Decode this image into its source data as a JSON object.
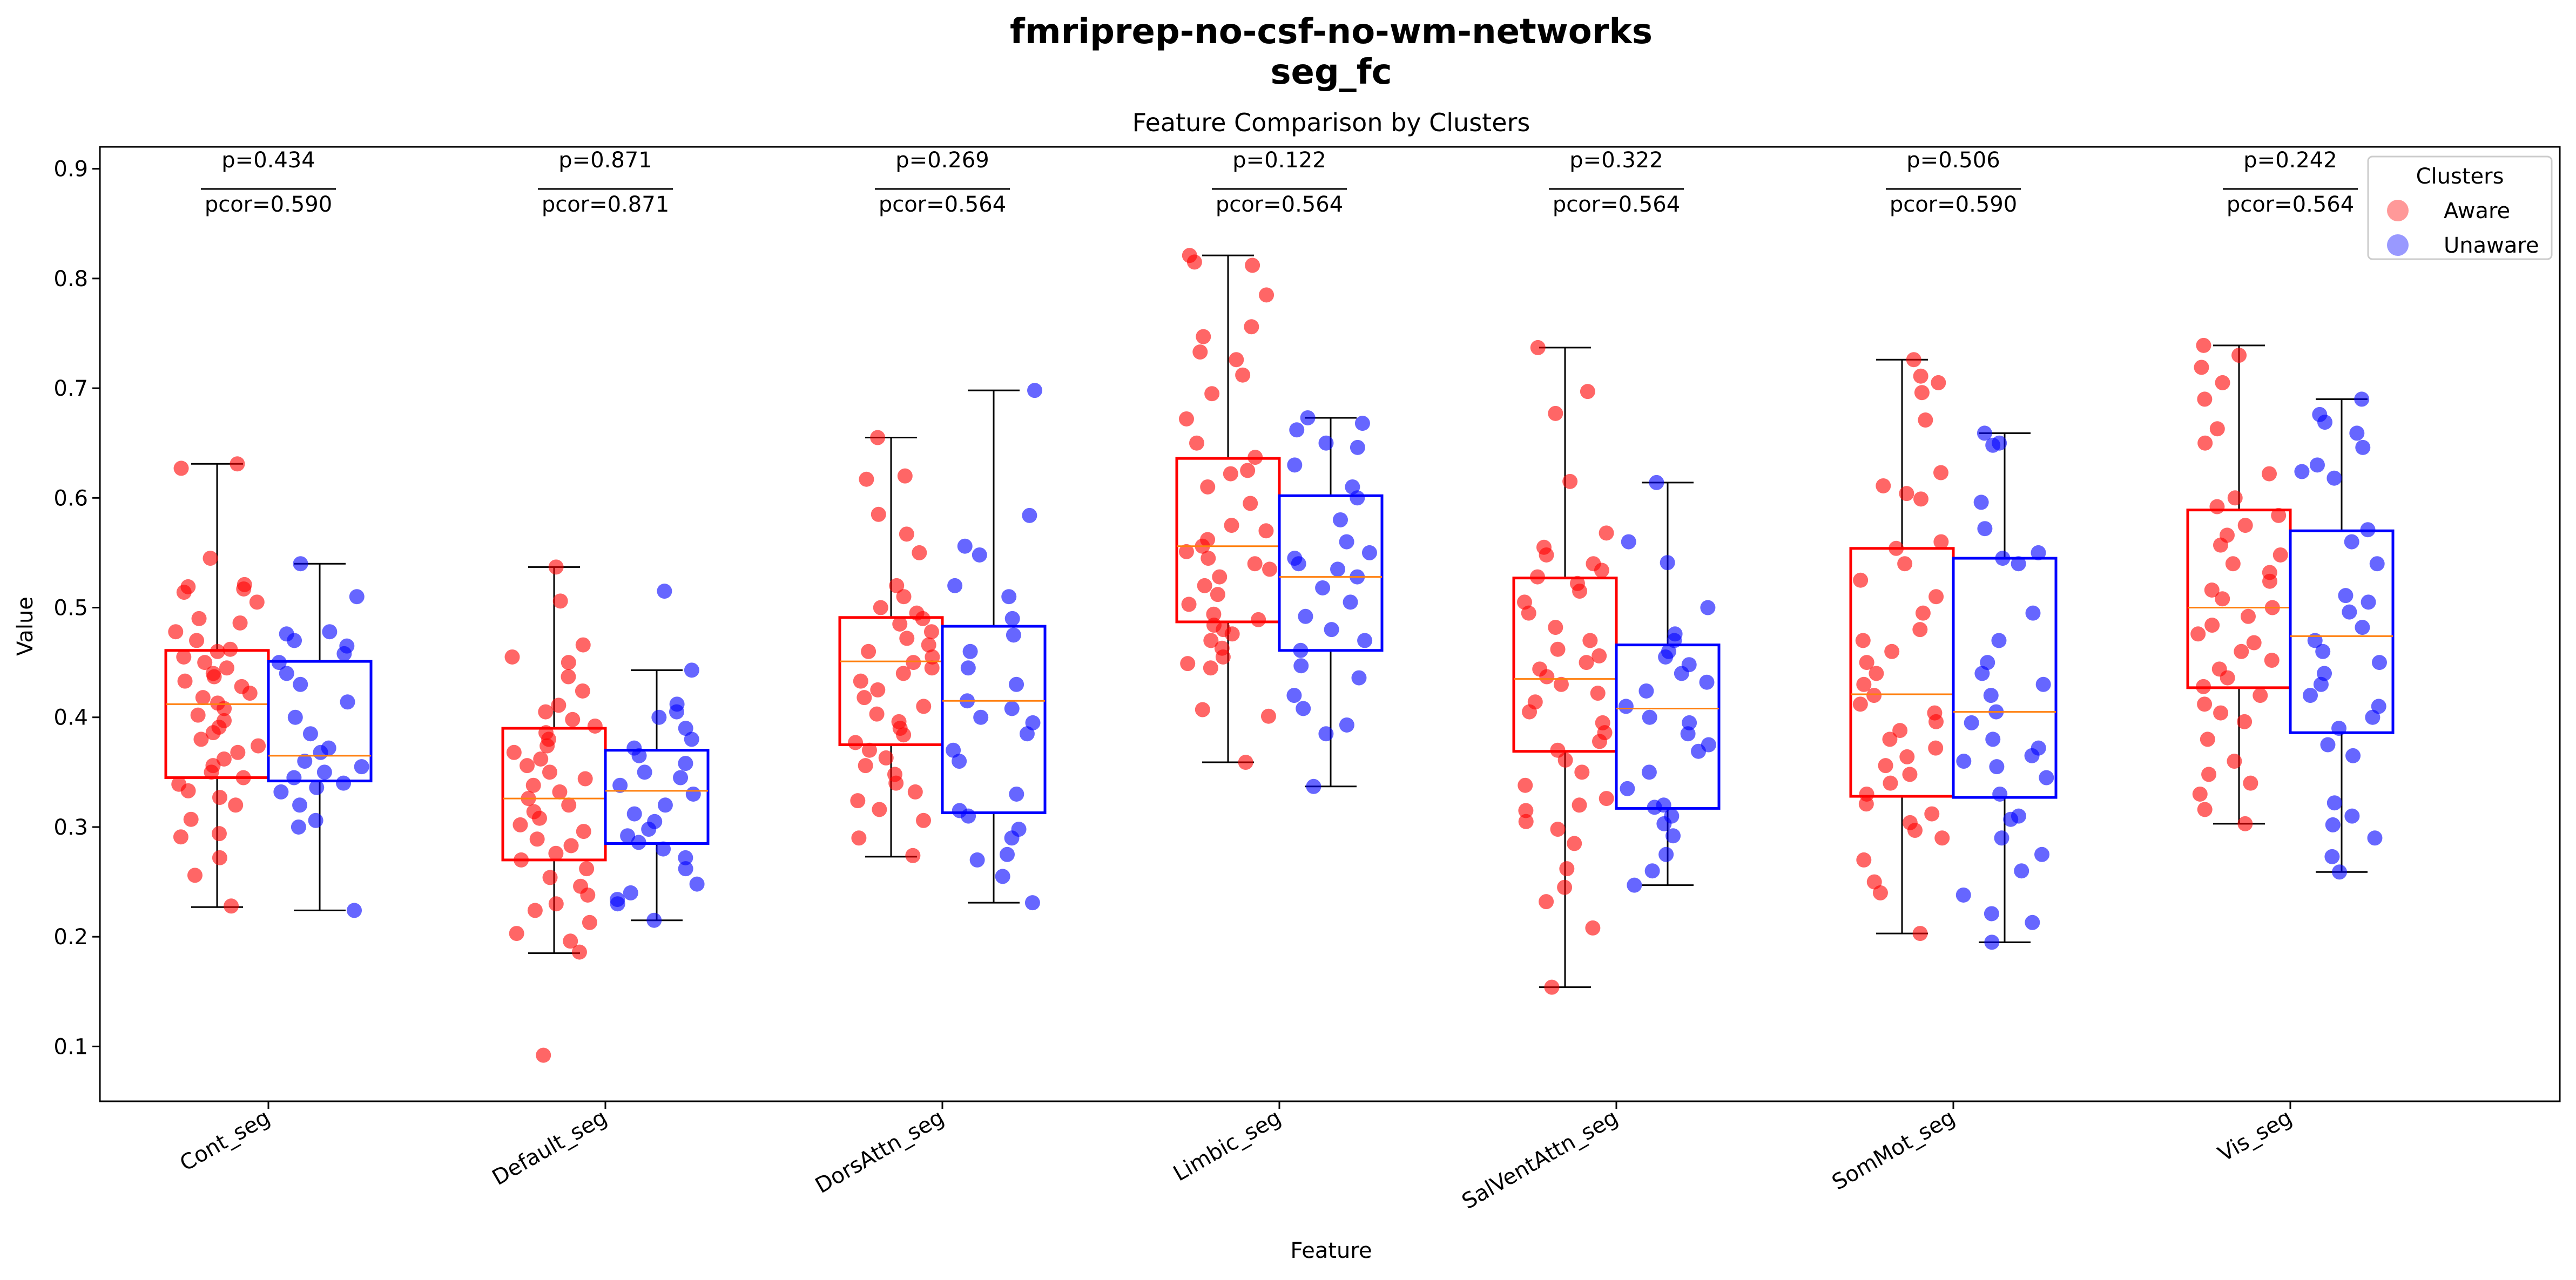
{
  "chart_data": {
    "type": "box",
    "suptitle_line1": "fmriprep-no-csf-no-wm-networks",
    "suptitle_line2": "seg_fc",
    "title": "Feature Comparison by Clusters",
    "xlabel": "Feature",
    "ylabel": "Value",
    "ylim": [
      0.05,
      0.92
    ],
    "yticks": [
      0.1,
      0.2,
      0.3,
      0.4,
      0.5,
      0.6,
      0.7,
      0.8,
      0.9
    ],
    "grid": false,
    "legend": {
      "title": "Clusters",
      "placement": "upper-right"
    },
    "categories": [
      "Cont_seg",
      "Default_seg",
      "DorsAttn_seg",
      "Limbic_seg",
      "SalVentAttn_seg",
      "SomMot_seg",
      "Vis_seg"
    ],
    "p_values": [
      "p=0.434",
      "p=0.871",
      "p=0.269",
      "p=0.122",
      "p=0.322",
      "p=0.506",
      "p=0.242"
    ],
    "pcor_values": [
      "pcor=0.590",
      "pcor=0.871",
      "pcor=0.564",
      "pcor=0.564",
      "pcor=0.564",
      "pcor=0.590",
      "pcor=0.564"
    ],
    "series": [
      {
        "name": "Aware",
        "color": "#ff0000",
        "boxes": [
          {
            "whislo": 0.227,
            "q1": 0.345,
            "med": 0.412,
            "q3": 0.461,
            "whishi": 0.631
          },
          {
            "whislo": 0.185,
            "q1": 0.27,
            "med": 0.326,
            "q3": 0.39,
            "whishi": 0.537
          },
          {
            "whislo": 0.273,
            "q1": 0.375,
            "med": 0.451,
            "q3": 0.491,
            "whishi": 0.655
          },
          {
            "whislo": 0.359,
            "q1": 0.487,
            "med": 0.556,
            "q3": 0.636,
            "whishi": 0.821
          },
          {
            "whislo": 0.154,
            "q1": 0.369,
            "med": 0.435,
            "q3": 0.527,
            "whishi": 0.737
          },
          {
            "whislo": 0.203,
            "q1": 0.328,
            "med": 0.421,
            "q3": 0.554,
            "whishi": 0.726
          },
          {
            "whislo": 0.303,
            "q1": 0.427,
            "med": 0.5,
            "q3": 0.589,
            "whishi": 0.739
          }
        ],
        "points": [
          [
            0.631,
            0.627,
            0.545,
            0.521,
            0.519,
            0.517,
            0.514,
            0.505,
            0.49,
            0.486,
            0.478,
            0.47,
            0.462,
            0.46,
            0.455,
            0.45,
            0.445,
            0.44,
            0.437,
            0.433,
            0.428,
            0.422,
            0.418,
            0.413,
            0.408,
            0.402,
            0.397,
            0.391,
            0.386,
            0.38,
            0.374,
            0.368,
            0.362,
            0.356,
            0.35,
            0.345,
            0.339,
            0.333,
            0.327,
            0.32,
            0.307,
            0.294,
            0.291,
            0.272,
            0.256,
            0.228
          ],
          [
            0.537,
            0.506,
            0.466,
            0.455,
            0.45,
            0.437,
            0.424,
            0.411,
            0.405,
            0.398,
            0.392,
            0.386,
            0.38,
            0.374,
            0.368,
            0.362,
            0.356,
            0.35,
            0.344,
            0.338,
            0.332,
            0.326,
            0.32,
            0.314,
            0.308,
            0.302,
            0.296,
            0.289,
            0.283,
            0.276,
            0.27,
            0.262,
            0.254,
            0.246,
            0.238,
            0.23,
            0.224,
            0.213,
            0.203,
            0.196,
            0.186,
            0.092
          ],
          [
            0.655,
            0.62,
            0.617,
            0.585,
            0.567,
            0.55,
            0.52,
            0.51,
            0.5,
            0.495,
            0.49,
            0.485,
            0.478,
            0.472,
            0.466,
            0.46,
            0.455,
            0.45,
            0.445,
            0.44,
            0.433,
            0.425,
            0.418,
            0.41,
            0.403,
            0.396,
            0.39,
            0.384,
            0.377,
            0.37,
            0.363,
            0.356,
            0.348,
            0.34,
            0.332,
            0.324,
            0.316,
            0.306,
            0.29,
            0.274
          ],
          [
            0.821,
            0.815,
            0.812,
            0.785,
            0.756,
            0.747,
            0.733,
            0.726,
            0.712,
            0.695,
            0.672,
            0.65,
            0.637,
            0.625,
            0.622,
            0.61,
            0.595,
            0.575,
            0.57,
            0.562,
            0.556,
            0.551,
            0.545,
            0.54,
            0.535,
            0.528,
            0.52,
            0.512,
            0.503,
            0.494,
            0.489,
            0.484,
            0.48,
            0.476,
            0.47,
            0.463,
            0.455,
            0.449,
            0.445,
            0.407,
            0.401,
            0.359
          ],
          [
            0.737,
            0.697,
            0.677,
            0.615,
            0.568,
            0.555,
            0.548,
            0.54,
            0.534,
            0.528,
            0.522,
            0.515,
            0.505,
            0.495,
            0.482,
            0.47,
            0.462,
            0.456,
            0.45,
            0.444,
            0.437,
            0.43,
            0.422,
            0.414,
            0.405,
            0.395,
            0.386,
            0.378,
            0.37,
            0.361,
            0.35,
            0.338,
            0.326,
            0.32,
            0.315,
            0.305,
            0.298,
            0.285,
            0.262,
            0.245,
            0.232,
            0.208,
            0.154
          ],
          [
            0.726,
            0.711,
            0.705,
            0.696,
            0.671,
            0.623,
            0.611,
            0.604,
            0.599,
            0.56,
            0.554,
            0.54,
            0.525,
            0.51,
            0.495,
            0.48,
            0.47,
            0.46,
            0.45,
            0.44,
            0.43,
            0.42,
            0.412,
            0.404,
            0.396,
            0.388,
            0.38,
            0.372,
            0.364,
            0.356,
            0.348,
            0.34,
            0.33,
            0.321,
            0.312,
            0.304,
            0.297,
            0.29,
            0.27,
            0.25,
            0.24,
            0.203
          ],
          [
            0.739,
            0.73,
            0.719,
            0.705,
            0.69,
            0.663,
            0.65,
            0.622,
            0.6,
            0.592,
            0.584,
            0.575,
            0.566,
            0.557,
            0.548,
            0.54,
            0.532,
            0.524,
            0.516,
            0.508,
            0.5,
            0.492,
            0.484,
            0.476,
            0.468,
            0.46,
            0.452,
            0.444,
            0.436,
            0.428,
            0.42,
            0.412,
            0.404,
            0.396,
            0.38,
            0.36,
            0.348,
            0.34,
            0.33,
            0.316,
            0.303
          ]
        ]
      },
      {
        "name": "Unaware",
        "color": "#0000ff",
        "boxes": [
          {
            "whislo": 0.224,
            "q1": 0.342,
            "med": 0.365,
            "q3": 0.451,
            "whishi": 0.54
          },
          {
            "whislo": 0.215,
            "q1": 0.285,
            "med": 0.333,
            "q3": 0.37,
            "whishi": 0.443
          },
          {
            "whislo": 0.231,
            "q1": 0.313,
            "med": 0.415,
            "q3": 0.483,
            "whishi": 0.698
          },
          {
            "whislo": 0.337,
            "q1": 0.461,
            "med": 0.528,
            "q3": 0.602,
            "whishi": 0.673
          },
          {
            "whislo": 0.247,
            "q1": 0.317,
            "med": 0.408,
            "q3": 0.466,
            "whishi": 0.614
          },
          {
            "whislo": 0.195,
            "q1": 0.327,
            "med": 0.405,
            "q3": 0.545,
            "whishi": 0.659
          },
          {
            "whislo": 0.259,
            "q1": 0.386,
            "med": 0.474,
            "q3": 0.57,
            "whishi": 0.69
          }
        ],
        "points": [
          [
            0.54,
            0.51,
            0.478,
            0.476,
            0.47,
            0.465,
            0.458,
            0.45,
            0.44,
            0.43,
            0.414,
            0.4,
            0.385,
            0.372,
            0.368,
            0.36,
            0.355,
            0.35,
            0.345,
            0.34,
            0.336,
            0.332,
            0.32,
            0.306,
            0.3,
            0.224
          ],
          [
            0.515,
            0.443,
            0.412,
            0.405,
            0.4,
            0.39,
            0.38,
            0.372,
            0.365,
            0.358,
            0.35,
            0.345,
            0.338,
            0.33,
            0.32,
            0.312,
            0.305,
            0.298,
            0.292,
            0.286,
            0.28,
            0.272,
            0.262,
            0.248,
            0.24,
            0.234,
            0.23,
            0.215
          ],
          [
            0.698,
            0.584,
            0.556,
            0.548,
            0.52,
            0.51,
            0.49,
            0.475,
            0.46,
            0.445,
            0.43,
            0.415,
            0.408,
            0.4,
            0.395,
            0.385,
            0.37,
            0.36,
            0.33,
            0.315,
            0.31,
            0.298,
            0.29,
            0.275,
            0.27,
            0.255,
            0.231
          ],
          [
            0.673,
            0.668,
            0.662,
            0.65,
            0.646,
            0.63,
            0.61,
            0.6,
            0.58,
            0.56,
            0.55,
            0.545,
            0.54,
            0.535,
            0.528,
            0.518,
            0.505,
            0.492,
            0.48,
            0.47,
            0.461,
            0.447,
            0.436,
            0.42,
            0.408,
            0.393,
            0.385,
            0.337
          ],
          [
            0.614,
            0.56,
            0.541,
            0.5,
            0.476,
            0.47,
            0.46,
            0.455,
            0.448,
            0.44,
            0.432,
            0.424,
            0.41,
            0.4,
            0.395,
            0.385,
            0.375,
            0.369,
            0.35,
            0.335,
            0.32,
            0.318,
            0.31,
            0.303,
            0.292,
            0.275,
            0.26,
            0.247
          ],
          [
            0.659,
            0.65,
            0.648,
            0.596,
            0.572,
            0.55,
            0.545,
            0.54,
            0.495,
            0.47,
            0.45,
            0.44,
            0.43,
            0.42,
            0.405,
            0.395,
            0.38,
            0.372,
            0.365,
            0.36,
            0.355,
            0.345,
            0.33,
            0.31,
            0.307,
            0.29,
            0.275,
            0.26,
            0.238,
            0.221,
            0.213,
            0.195
          ],
          [
            0.69,
            0.676,
            0.669,
            0.659,
            0.646,
            0.63,
            0.624,
            0.618,
            0.571,
            0.56,
            0.54,
            0.511,
            0.505,
            0.496,
            0.482,
            0.47,
            0.46,
            0.45,
            0.44,
            0.43,
            0.42,
            0.41,
            0.4,
            0.39,
            0.375,
            0.365,
            0.322,
            0.31,
            0.302,
            0.29,
            0.273,
            0.259
          ]
        ]
      }
    ]
  }
}
